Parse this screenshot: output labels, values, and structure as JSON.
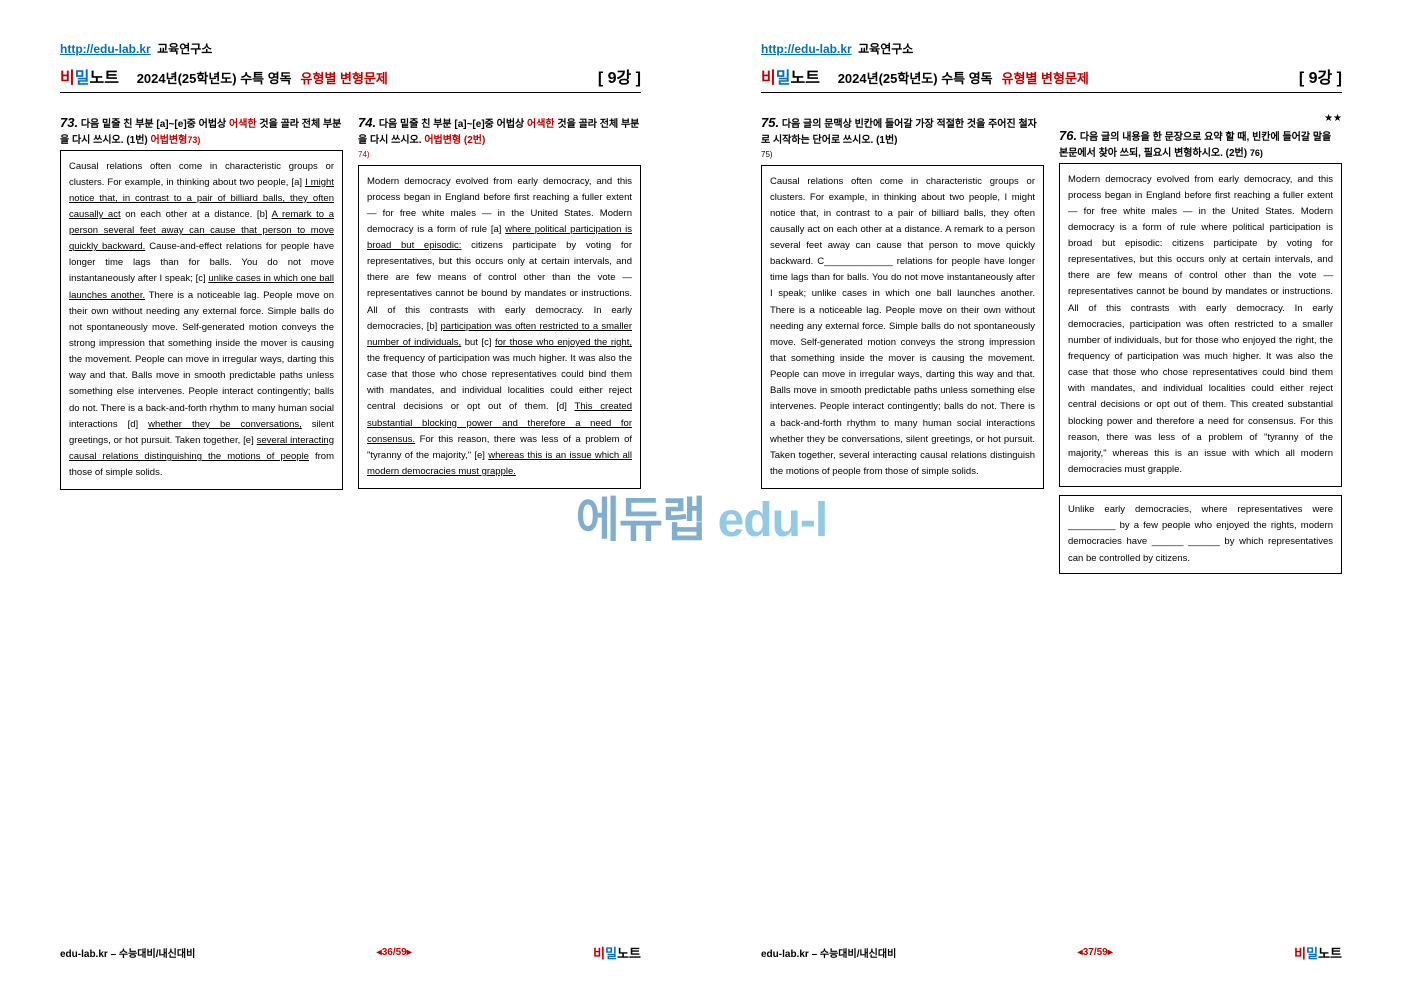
{
  "header": {
    "url": "http://edu-lab.kr",
    "url_suffix": " 교육연구소",
    "brand_bi": "비",
    "brand_mil": "밀",
    "brand_note": "노트",
    "title_year": "2024년(25학년도) 수특 영독",
    "title_type": "유형별 변형문제",
    "lecture": "[ 9강 ]"
  },
  "left_page": {
    "q73": {
      "number": "73.",
      "prompt_a": "다음 밑줄 친 부분 [a]~[e]중 어법상 ",
      "prompt_red": "어색한",
      "prompt_b": " 것을 골라 전체 부분을 다시 쓰시오.   (1번) ",
      "prompt_ref": "어법변형",
      "ref": "73)",
      "passage_parts": [
        {
          "t": "Causal relations often come in characteristic groups or clusters. For example, in thinking about two people, [a] ",
          "u": false
        },
        {
          "t": "I might notice that, in contrast to a pair of billiard balls, they often causally act",
          "u": true
        },
        {
          "t": " on each other at a distance. [b] ",
          "u": false
        },
        {
          "t": "A remark to a person several feet away can cause that person to move quickly backward.",
          "u": true
        },
        {
          "t": " Cause-and-effect relations for people have longer time lags than for balls. You do not move instantaneously after I speak; [c] ",
          "u": false
        },
        {
          "t": "unlike cases in which one ball launches another.",
          "u": true
        },
        {
          "t": " There is a noticeable lag. People move on their own without needing any external force. Simple balls do not spontaneously move. Self-generated motion conveys the strong impression that something inside the mover is causing the movement. People can move in irregular ways, darting this way and that. Balls move in smooth predictable paths unless something else intervenes. People interact contingently; balls do not. There is a back-and-forth rhythm to many human social interactions [d] ",
          "u": false
        },
        {
          "t": "whether they be conversations,",
          "u": true
        },
        {
          "t": " silent greetings, or hot pursuit. Taken together, [e] ",
          "u": false
        },
        {
          "t": "several interacting causal relations distinguishing the motions of people",
          "u": true
        },
        {
          "t": " from those of simple solids.",
          "u": false
        }
      ]
    },
    "q74": {
      "number": "74.",
      "prompt_a": "다음 밑줄 친 부분 [a]~[e]중 어법상 ",
      "prompt_red": "어색한",
      "prompt_b": " 것을 골라 전체 부분을 다시 쓰시오.  ",
      "prompt_ref": "어법변형 (2번)",
      "ref": "74)",
      "passage_parts": [
        {
          "t": "Modern democracy evolved from early democracy, and this process began in England before first reaching a fuller extent — for free white males — in the United States. Modern democracy is a form of rule [a] ",
          "u": false
        },
        {
          "t": "where political participation is broad but episodic:",
          "u": true
        },
        {
          "t": " citizens participate by voting for representatives, but this occurs only at certain intervals, and there are few means of control other than the vote — representatives cannot be bound by mandates or instructions. All of this contrasts with early democracy. In early democracies, [b] ",
          "u": false
        },
        {
          "t": "participation was often restricted to a smaller number of individuals,",
          "u": true
        },
        {
          "t": " but [c] ",
          "u": false
        },
        {
          "t": "for those who enjoyed the right,",
          "u": true
        },
        {
          "t": " the frequency of participation was much higher. It was also the case that those who chose representatives could bind them with mandates, and individual localities could either reject central decisions or opt out of them. [d] ",
          "u": false
        },
        {
          "t": "This created substantial blocking power and therefore a need for consensus.",
          "u": true
        },
        {
          "t": " For this reason, there was less of a problem of \"tyranny of the majority,\" [e] ",
          "u": false
        },
        {
          "t": "whereas this is an issue which all modern democracies must grapple.",
          "u": true
        }
      ]
    },
    "footer": {
      "left": "edu-lab.kr – 수능대비/내신대비",
      "mid": "◂36/59▸"
    }
  },
  "right_page": {
    "q75": {
      "number": "75.",
      "prompt_a": "다음 글의 문맥상 빈칸에 들어갈 가장 적절한 것을 주어진 철자로 시작하는 단어로 쓰시오. (1번)",
      "ref": "75)",
      "passage": "Causal relations often come in characteristic groups or clusters. For example, in thinking about two people, I might notice that, in contrast to a pair of billiard balls, they often causally act on each other at a distance. A remark to a person several feet away can cause that person to move quickly backward. C_____________ relations for people have longer time lags than for balls. You do not move instantaneously after I speak; unlike cases in which one ball launches another. There is a noticeable lag. People move on their own without needing any external force. Simple balls do not spontaneously move. Self-generated motion conveys the strong impression that something inside the mover is causing the movement. People can move in irregular ways, darting this way and that. Balls move in smooth predictable paths unless something else intervenes. People interact contingently; balls do not. There is a back-and-forth rhythm to many human social interactions whether they be conversations, silent greetings, or hot pursuit. Taken together, several interacting causal relations distinguish the motions of people from those of simple solids."
    },
    "q76": {
      "stars": "★★",
      "number": "76.",
      "prompt_a": "다음 글의 내용을 한 문장으로 요약 할 때, 빈칸에 들어갈 말을 본문에서 찾아 쓰되, 필요시 변형하시오. (2번) ",
      "ref": "76)",
      "passage": "Modern democracy evolved from early democracy, and this process began in England before first reaching a fuller extent — for free white males — in the United States. Modern democracy is a form of rule where political participation is broad but episodic: citizens participate by voting for representatives, but this occurs only at certain intervals, and there are few means of control other than the vote — representatives cannot be bound by mandates or instructions. All of this contrasts with early democracy. In early democracies, participation was often restricted to a smaller number of individuals, but for those who enjoyed the right, the frequency of participation was much higher. It was also the case that those who chose representatives could bind them with mandates, and individual localities could either reject central decisions or opt out of them. This created substantial blocking power and therefore a need for consensus. For this reason, there was less of a problem of \"tyranny of the majority,\" whereas this is an issue with which all modern democracies must grapple.",
      "summary": "Unlike early democracies, where representatives were _________ by a few people who enjoyed the rights, modern democracies have ______ ______ by which representatives can be controlled by citizens."
    },
    "footer": {
      "left": "edu-lab.kr – 수능대비/내신대비",
      "mid": "◂37/59▸"
    }
  },
  "footer_brand": {
    "bi": "비",
    "mil": "밀",
    "note": "노트"
  },
  "watermark": "에듀랩 edu-l"
}
